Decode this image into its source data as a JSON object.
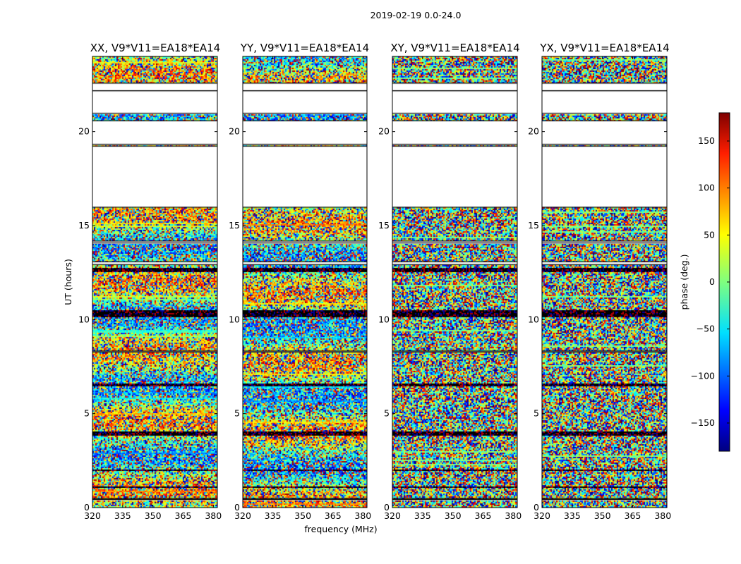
{
  "chart_data": {
    "type": "heatmap",
    "suptitle": "2019-02-19 0.0-24.0",
    "xlabel": "frequency (MHz)",
    "ylabel": "UT (hours)",
    "xlim": [
      320,
      382
    ],
    "ylim": [
      0,
      24
    ],
    "xticks": [
      320,
      335,
      350,
      365,
      380
    ],
    "yticks": [
      0,
      5,
      10,
      15,
      20
    ],
    "panels": [
      {
        "title": "XX, V9*V11=EA18*EA14",
        "polarization": "XX"
      },
      {
        "title": "YY, V9*V11=EA18*EA14",
        "polarization": "YY"
      },
      {
        "title": "XY, V9*V11=EA18*EA14",
        "polarization": "XY"
      },
      {
        "title": "YX, V9*V11=EA18*EA14",
        "polarization": "YX"
      }
    ],
    "colorbar": {
      "label": "phase (deg.)",
      "range": [
        -180,
        180
      ],
      "ticks": [
        -150,
        -100,
        -50,
        0,
        50,
        100,
        150
      ],
      "tick_labels": [
        "−150",
        "−100",
        "−50",
        "0",
        "50",
        "100",
        "150"
      ],
      "colormap": "jet"
    },
    "gaps_hours": [
      [
        22.2,
        22.6
      ],
      [
        21.0,
        22.2
      ],
      [
        16.0,
        19.25
      ],
      [
        19.35,
        20.6
      ],
      [
        14.1,
        14.2
      ],
      [
        12.95,
        13.1
      ],
      [
        0.45,
        0.5
      ],
      [
        8.3,
        8.35
      ]
    ],
    "dark_bands_hours": [
      [
        10.15,
        10.5
      ],
      [
        6.5,
        6.62
      ],
      [
        3.85,
        4.05
      ],
      [
        12.6,
        12.75
      ],
      [
        1.1,
        1.15
      ],
      [
        2.0,
        2.05
      ]
    ]
  }
}
